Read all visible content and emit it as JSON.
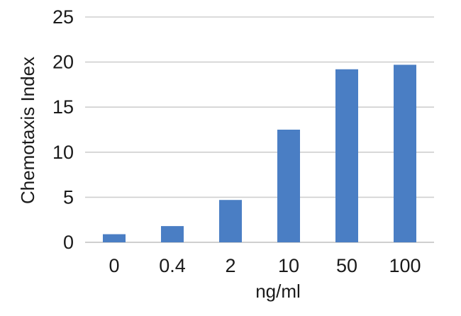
{
  "chart_data": {
    "type": "bar",
    "categories": [
      "0",
      "0.4",
      "2",
      "10",
      "50",
      "100"
    ],
    "values": [
      0.9,
      1.8,
      4.7,
      12.5,
      19.2,
      19.7
    ],
    "xlabel": "ng/ml",
    "ylabel": "Chemotaxis Index",
    "ylim": [
      0,
      25
    ],
    "yticks": [
      0,
      5,
      10,
      15,
      20,
      25
    ],
    "grid": true,
    "legend": "none",
    "bar_color": "#4a7ec4",
    "grid_color": "#cfcfcf"
  }
}
